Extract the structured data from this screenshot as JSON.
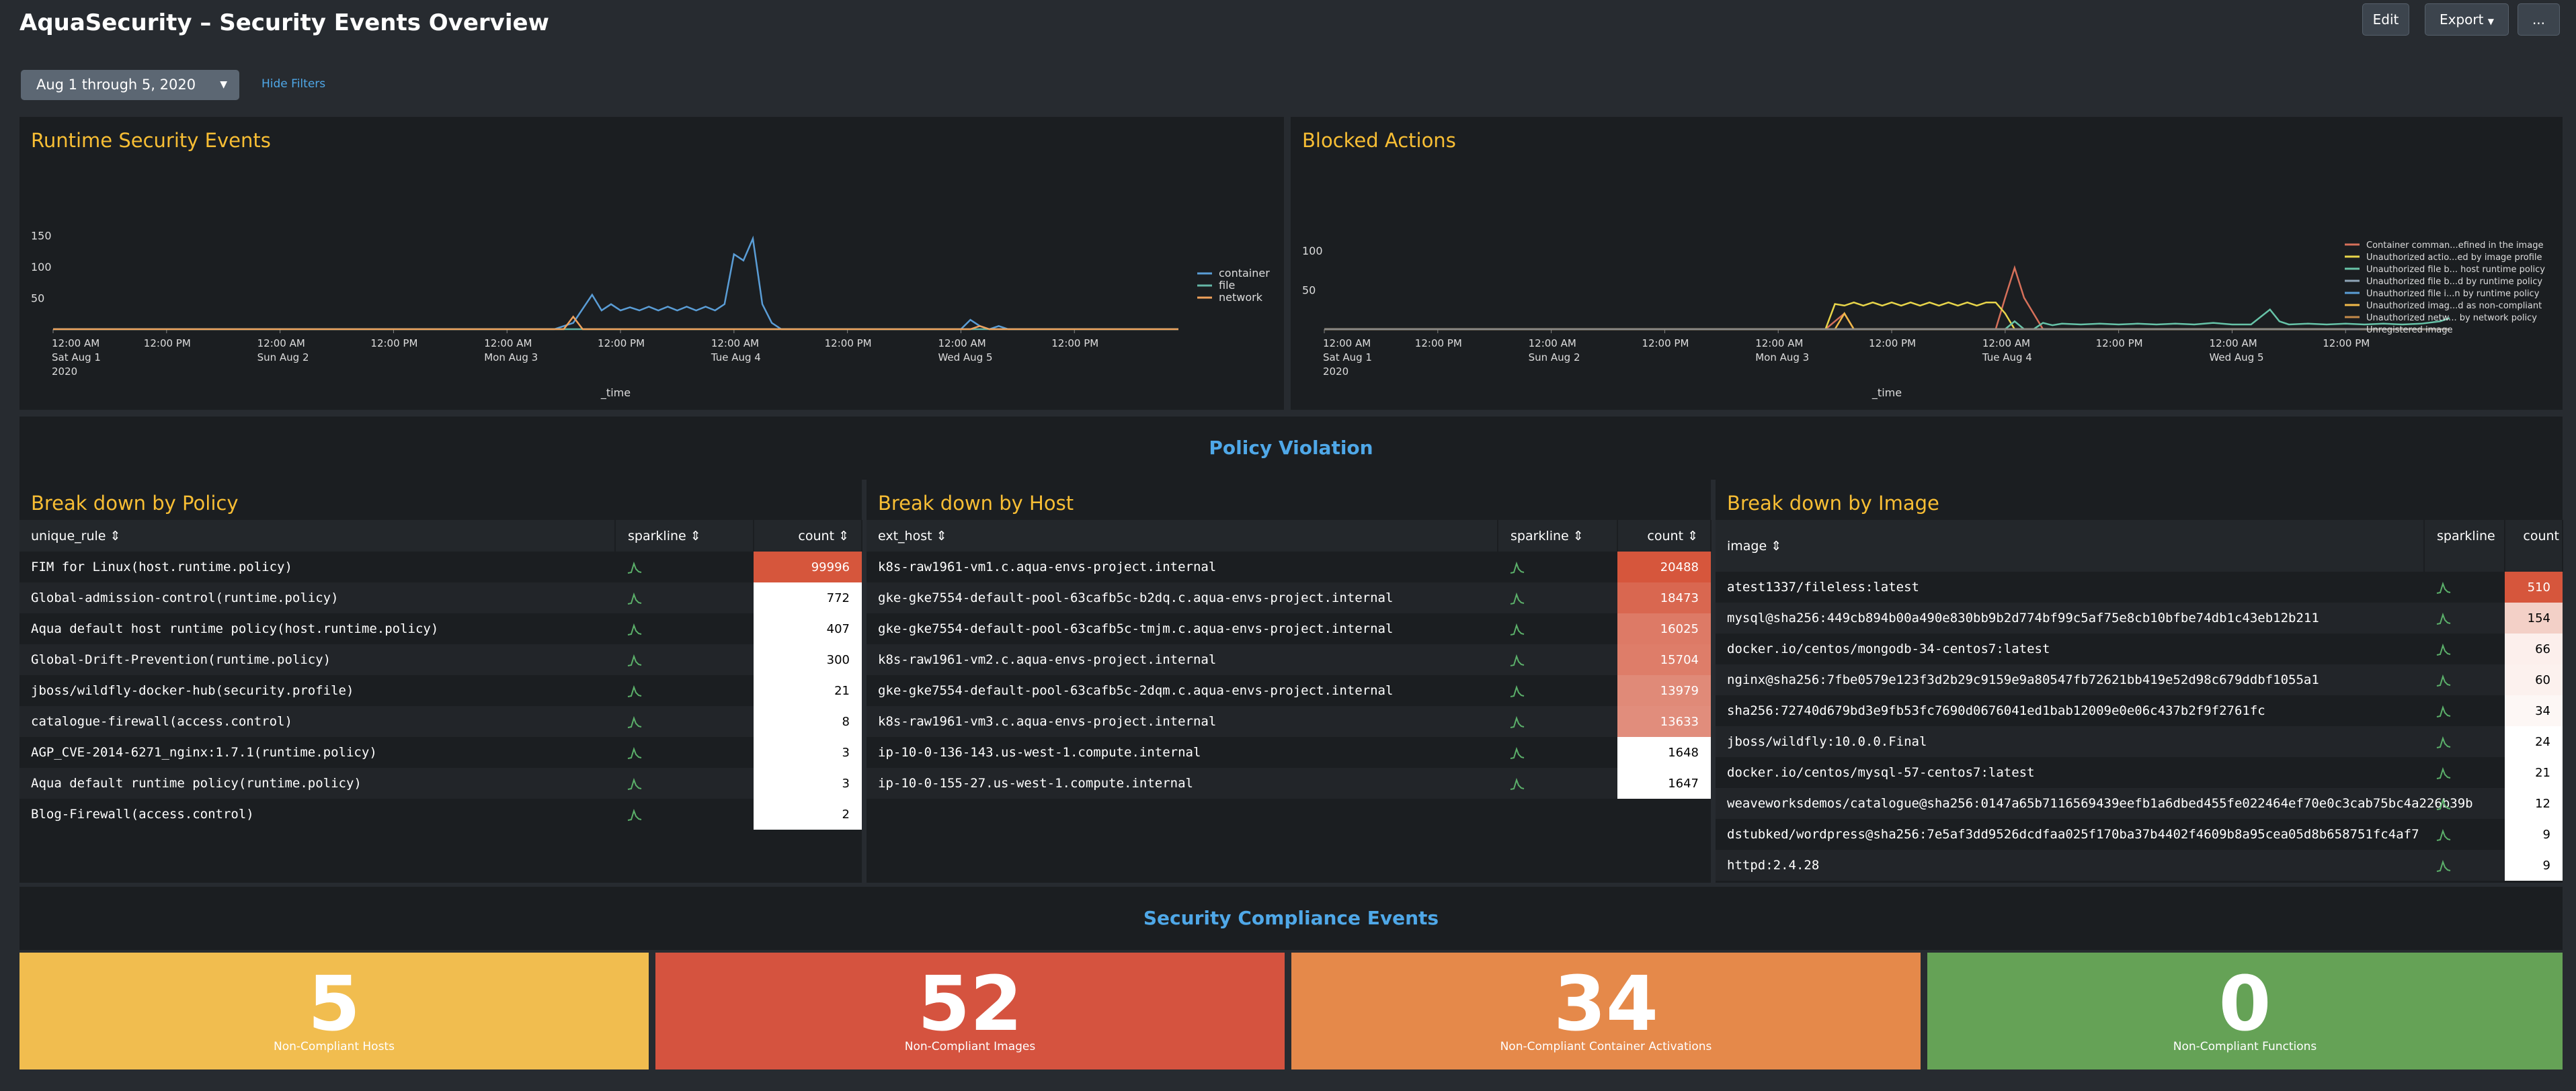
{
  "header": {
    "title": "AquaSecurity – Security Events Overview",
    "edit": "Edit",
    "export": "Export",
    "more": "..."
  },
  "filters": {
    "time_range": "Aug 1 through 5, 2020",
    "hide": "Hide Filters"
  },
  "runtime_panel": {
    "title": "Runtime Security Events"
  },
  "blocked_panel": {
    "title": "Blocked Actions"
  },
  "policy_section": {
    "title": "Policy Violation"
  },
  "compliance_section": {
    "title": "Security Compliance Events"
  },
  "policy_table": {
    "title": "Break down by Policy",
    "headers": [
      "unique_rule",
      "sparkline",
      "count"
    ],
    "rows": [
      {
        "name": "FIM for Linux(host.runtime.policy)",
        "count": "99996",
        "bg": "#d6563c"
      },
      {
        "name": "Global-admission-control(runtime.policy)",
        "count": "772",
        "bg": "#ffffff"
      },
      {
        "name": "Aqua default host runtime policy(host.runtime.policy)",
        "count": "407",
        "bg": "#ffffff"
      },
      {
        "name": "Global-Drift-Prevention(runtime.policy)",
        "count": "300",
        "bg": "#ffffff"
      },
      {
        "name": "jboss/wildfly-docker-hub(security.profile)",
        "count": "21",
        "bg": "#ffffff"
      },
      {
        "name": "catalogue-firewall(access.control)",
        "count": "8",
        "bg": "#ffffff"
      },
      {
        "name": "AGP_CVE-2014-6271_nginx:1.7.1(runtime.policy)",
        "count": "3",
        "bg": "#ffffff"
      },
      {
        "name": "Aqua default runtime policy(runtime.policy)",
        "count": "3",
        "bg": "#ffffff"
      },
      {
        "name": "Blog-Firewall(access.control)",
        "count": "2",
        "bg": "#ffffff"
      }
    ]
  },
  "host_table": {
    "title": "Break down by Host",
    "headers": [
      "ext_host",
      "sparkline",
      "count"
    ],
    "rows": [
      {
        "name": "k8s-raw1961-vm1.c.aqua-envs-project.internal",
        "count": "20488",
        "bg": "#d6563c"
      },
      {
        "name": "gke-gke7554-default-pool-63cafb5c-b2dq.c.aqua-envs-project.internal",
        "count": "18473",
        "bg": "#d96750"
      },
      {
        "name": "gke-gke7554-default-pool-63cafb5c-tmjm.c.aqua-envs-project.internal",
        "count": "16025",
        "bg": "#dd7a66"
      },
      {
        "name": "k8s-raw1961-vm2.c.aqua-envs-project.internal",
        "count": "15704",
        "bg": "#de7d69"
      },
      {
        "name": "gke-gke7554-default-pool-63cafb5c-2dqm.c.aqua-envs-project.internal",
        "count": "13979",
        "bg": "#e08a78"
      },
      {
        "name": "k8s-raw1961-vm3.c.aqua-envs-project.internal",
        "count": "13633",
        "bg": "#e18d7c"
      },
      {
        "name": "ip-10-0-136-143.us-west-1.compute.internal",
        "count": "1648",
        "bg": "#ffffff"
      },
      {
        "name": "ip-10-0-155-27.us-west-1.compute.internal",
        "count": "1647",
        "bg": "#ffffff"
      }
    ]
  },
  "image_table": {
    "title": "Break down by Image",
    "headers": [
      "image",
      "sparkline",
      "count"
    ],
    "rows": [
      {
        "name": "atest1337/fileless:latest",
        "count": "510",
        "bg": "#d6563c"
      },
      {
        "name": "mysql@sha256:449cb894b00a490e830bb9b2d774bf99c5af75e8cb10bfbe74db1c43eb12b211",
        "count": "154",
        "bg": "#f3d0c7"
      },
      {
        "name": "docker.io/centos/mongodb-34-centos7:latest",
        "count": "66",
        "bg": "#fcefec"
      },
      {
        "name": "nginx@sha256:7fbe0579e123f3d2b29c9159e9a80547fb72621bb419e52d98c679ddbf1055a1",
        "count": "60",
        "bg": "#fcf1ee"
      },
      {
        "name": "sha256:72740d679bd3e9fb53fc7690d0676041ed1bab12009e0e06c437b2f9f2761fc",
        "count": "34",
        "bg": "#fdf7f5"
      },
      {
        "name": "jboss/wildfly:10.0.0.Final",
        "count": "24",
        "bg": "#ffffff"
      },
      {
        "name": "docker.io/centos/mysql-57-centos7:latest",
        "count": "21",
        "bg": "#ffffff"
      },
      {
        "name": "weaveworksdemos/catalogue@sha256:0147a65b7116569439eefb1a6dbed455fe022464ef70e0c3cab75bc4a226b39b",
        "count": "12",
        "bg": "#ffffff"
      },
      {
        "name": "dstubked/wordpress@sha256:7e5af3dd9526dcdfaa025f170ba37b4402f4609b8a95cea05d8b658751fc4af7",
        "count": "9",
        "bg": "#ffffff"
      },
      {
        "name": "httpd:2.4.28",
        "count": "9",
        "bg": "#ffffff"
      }
    ]
  },
  "kpis": [
    {
      "value": "5",
      "label": "Non-Compliant Hosts",
      "color": "#f1bd4f"
    },
    {
      "value": "52",
      "label": "Non-Compliant Images",
      "color": "#d5533f"
    },
    {
      "value": "34",
      "label": "Non-Compliant Container Activations",
      "color": "#e5894a"
    },
    {
      "value": "0",
      "label": "Non-Compliant Functions",
      "color": "#65a256"
    }
  ],
  "chart_data": [
    {
      "type": "line",
      "title": "Runtime Security Events",
      "xlabel": "_time",
      "ylabel": "",
      "ylim": [
        0,
        150
      ],
      "yticks": [
        50,
        100,
        150
      ],
      "xticks": [
        {
          "t": 0,
          "lines": [
            "12:00 AM",
            "Sat Aug 1",
            "2020"
          ]
        },
        {
          "t": 12,
          "lines": [
            "12:00 PM"
          ]
        },
        {
          "t": 24,
          "lines": [
            "12:00 AM",
            "Sun Aug 2"
          ]
        },
        {
          "t": 36,
          "lines": [
            "12:00 PM"
          ]
        },
        {
          "t": 48,
          "lines": [
            "12:00 AM",
            "Mon Aug 3"
          ]
        },
        {
          "t": 60,
          "lines": [
            "12:00 PM"
          ]
        },
        {
          "t": 72,
          "lines": [
            "12:00 AM",
            "Tue Aug 4"
          ]
        },
        {
          "t": 84,
          "lines": [
            "12:00 PM"
          ]
        },
        {
          "t": 96,
          "lines": [
            "12:00 AM",
            "Wed Aug 5"
          ]
        },
        {
          "t": 108,
          "lines": [
            "12:00 PM"
          ]
        }
      ],
      "xmax": 119,
      "legend": "right",
      "series": [
        {
          "name": "container",
          "color": "#5a9dd6",
          "points": [
            [
              0,
              0
            ],
            [
              53,
              0
            ],
            [
              55,
              10
            ],
            [
              57,
              55
            ],
            [
              58,
              30
            ],
            [
              59,
              40
            ],
            [
              60,
              30
            ],
            [
              61,
              35
            ],
            [
              62,
              30
            ],
            [
              63,
              36
            ],
            [
              64,
              30
            ],
            [
              65,
              36
            ],
            [
              66,
              30
            ],
            [
              67,
              36
            ],
            [
              68,
              30
            ],
            [
              69,
              36
            ],
            [
              70,
              30
            ],
            [
              71,
              40
            ],
            [
              72,
              120
            ],
            [
              73,
              110
            ],
            [
              74,
              145
            ],
            [
              75,
              40
            ],
            [
              76,
              10
            ],
            [
              77,
              0
            ],
            [
              96,
              0
            ],
            [
              97,
              15
            ],
            [
              98,
              5
            ],
            [
              99,
              0
            ],
            [
              100,
              5
            ],
            [
              101,
              0
            ],
            [
              119,
              0
            ]
          ]
        },
        {
          "name": "file",
          "color": "#64b6a6",
          "points": [
            [
              0,
              0
            ],
            [
              119,
              0
            ]
          ]
        },
        {
          "name": "network",
          "color": "#f0a15b",
          "points": [
            [
              0,
              0
            ],
            [
              54,
              0
            ],
            [
              55,
              20
            ],
            [
              56,
              0
            ],
            [
              97,
              0
            ],
            [
              98,
              5
            ],
            [
              99,
              0
            ],
            [
              119,
              0
            ]
          ]
        }
      ]
    },
    {
      "type": "line",
      "title": "Blocked Actions",
      "xlabel": "_time",
      "ylabel": "",
      "ylim": [
        0,
        100
      ],
      "yticks": [
        50,
        100
      ],
      "xticks": [
        {
          "t": 0,
          "lines": [
            "12:00 AM",
            "Sat Aug 1",
            "2020"
          ]
        },
        {
          "t": 12,
          "lines": [
            "12:00 PM"
          ]
        },
        {
          "t": 24,
          "lines": [
            "12:00 AM",
            "Sun Aug 2"
          ]
        },
        {
          "t": 36,
          "lines": [
            "12:00 PM"
          ]
        },
        {
          "t": 48,
          "lines": [
            "12:00 AM",
            "Mon Aug 3"
          ]
        },
        {
          "t": 60,
          "lines": [
            "12:00 PM"
          ]
        },
        {
          "t": 72,
          "lines": [
            "12:00 AM",
            "Tue Aug 4"
          ]
        },
        {
          "t": 84,
          "lines": [
            "12:00 PM"
          ]
        },
        {
          "t": 96,
          "lines": [
            "12:00 AM",
            "Wed Aug 5"
          ]
        },
        {
          "t": 108,
          "lines": [
            "12:00 PM"
          ]
        }
      ],
      "xmax": 119,
      "legend": "right",
      "series": [
        {
          "name": "Container comman...efined in the image",
          "color": "#d6705a",
          "points": [
            [
              0,
              0
            ],
            [
              53,
              0
            ],
            [
              55,
              20
            ],
            [
              56,
              0
            ],
            [
              71,
              0
            ],
            [
              72,
              40
            ],
            [
              73,
              78
            ],
            [
              74,
              40
            ],
            [
              75,
              20
            ],
            [
              76,
              0
            ],
            [
              119,
              0
            ]
          ]
        },
        {
          "name": "Unauthorized actio...ed by image profile",
          "color": "#e8d54a",
          "points": [
            [
              0,
              0
            ],
            [
              53,
              0
            ],
            [
              54,
              32
            ],
            [
              55,
              30
            ],
            [
              56,
              34
            ],
            [
              57,
              30
            ],
            [
              58,
              34
            ],
            [
              59,
              30
            ],
            [
              60,
              34
            ],
            [
              61,
              30
            ],
            [
              62,
              34
            ],
            [
              63,
              30
            ],
            [
              64,
              34
            ],
            [
              65,
              30
            ],
            [
              66,
              34
            ],
            [
              67,
              30
            ],
            [
              68,
              34
            ],
            [
              69,
              30
            ],
            [
              70,
              34
            ],
            [
              71,
              34
            ],
            [
              72,
              20
            ],
            [
              73,
              0
            ],
            [
              119,
              0
            ]
          ]
        },
        {
          "name": "Unauthorized file b... host runtime policy",
          "color": "#67c3a8",
          "points": [
            [
              0,
              0
            ],
            [
              72,
              0
            ],
            [
              73,
              10
            ],
            [
              74,
              0
            ],
            [
              75,
              0
            ],
            [
              76,
              8
            ],
            [
              77,
              5
            ],
            [
              78,
              7
            ],
            [
              80,
              6
            ],
            [
              82,
              7
            ],
            [
              84,
              6
            ],
            [
              86,
              7
            ],
            [
              88,
              6
            ],
            [
              90,
              7
            ],
            [
              92,
              6
            ],
            [
              94,
              8
            ],
            [
              96,
              6
            ],
            [
              98,
              6
            ],
            [
              100,
              25
            ],
            [
              101,
              10
            ],
            [
              102,
              6
            ],
            [
              104,
              7
            ],
            [
              106,
              6
            ],
            [
              108,
              7
            ],
            [
              110,
              6
            ],
            [
              112,
              7
            ],
            [
              114,
              6
            ],
            [
              116,
              7
            ],
            [
              118,
              10
            ],
            [
              119,
              14
            ]
          ]
        },
        {
          "name": "Unauthorized file b...d by runtime policy",
          "color": "#8fa5b8",
          "points": [
            [
              0,
              0
            ],
            [
              119,
              0
            ]
          ]
        },
        {
          "name": "Unauthorized file i...n by runtime policy",
          "color": "#5a9dd6",
          "points": [
            [
              0,
              0
            ],
            [
              119,
              0
            ]
          ]
        },
        {
          "name": "Unauthorized imag...d as non-compliant",
          "color": "#f0b94a",
          "points": [
            [
              0,
              0
            ],
            [
              54,
              0
            ],
            [
              55,
              20
            ],
            [
              56,
              0
            ],
            [
              119,
              0
            ]
          ]
        },
        {
          "name": "Unauthorized netw... by network policy",
          "color": "#c48a4a",
          "points": [
            [
              0,
              0
            ],
            [
              119,
              0
            ]
          ]
        },
        {
          "name": "Unregistered image",
          "color": "#888888",
          "points": [
            [
              0,
              0
            ],
            [
              119,
              0
            ]
          ]
        }
      ]
    }
  ]
}
